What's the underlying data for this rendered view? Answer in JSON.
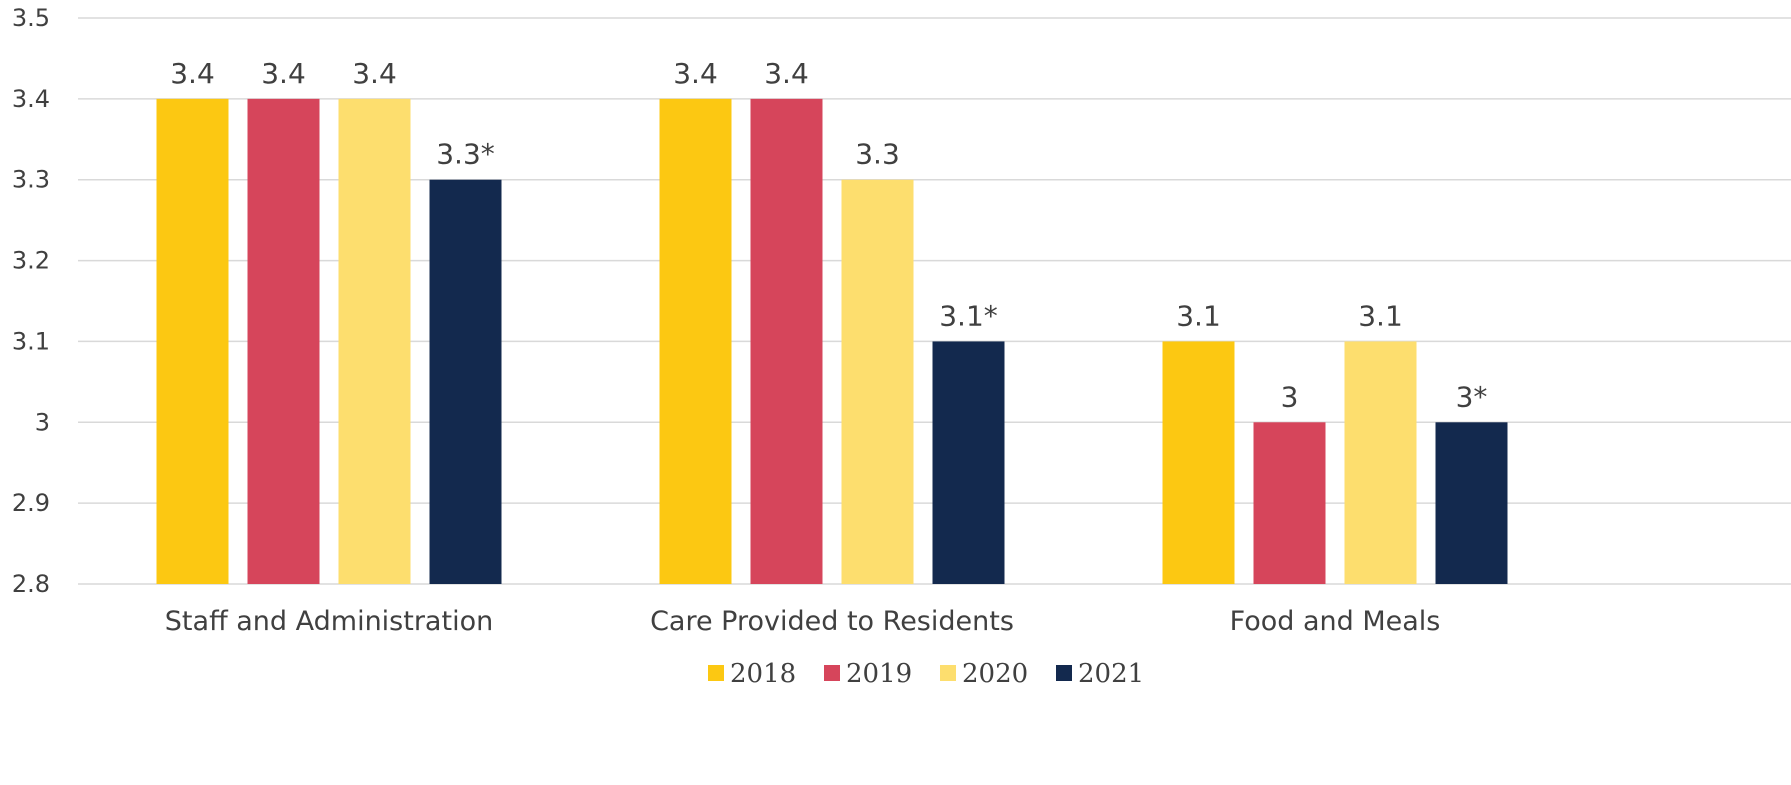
{
  "chart_data": {
    "type": "bar",
    "categories": [
      "Staff and Administration",
      "Care Provided to Residents",
      "Food and Meals"
    ],
    "series": [
      {
        "name": "2018",
        "color": "#FCC812",
        "values": [
          3.4,
          3.4,
          3.1
        ],
        "labels": [
          "3.4",
          "3.4",
          "3.1"
        ]
      },
      {
        "name": "2019",
        "color": "#D6455B",
        "values": [
          3.4,
          3.4,
          3.0
        ],
        "labels": [
          "3.4",
          "3.4",
          "3"
        ]
      },
      {
        "name": "2020",
        "color": "#FDDE6E",
        "values": [
          3.4,
          3.3,
          3.1
        ],
        "labels": [
          "3.4",
          "3.3",
          "3.1"
        ]
      },
      {
        "name": "2021",
        "color": "#13294E",
        "values": [
          3.3,
          3.1,
          3.0
        ],
        "labels": [
          "3.3*",
          "3.1*",
          "3*"
        ]
      }
    ],
    "y_ticks": [
      "2.8",
      "2.9",
      "3",
      "3.1",
      "3.2",
      "3.3",
      "3.4",
      "3.5"
    ],
    "ylim": [
      2.8,
      3.5
    ],
    "grid": true,
    "legend_position": "bottom"
  }
}
